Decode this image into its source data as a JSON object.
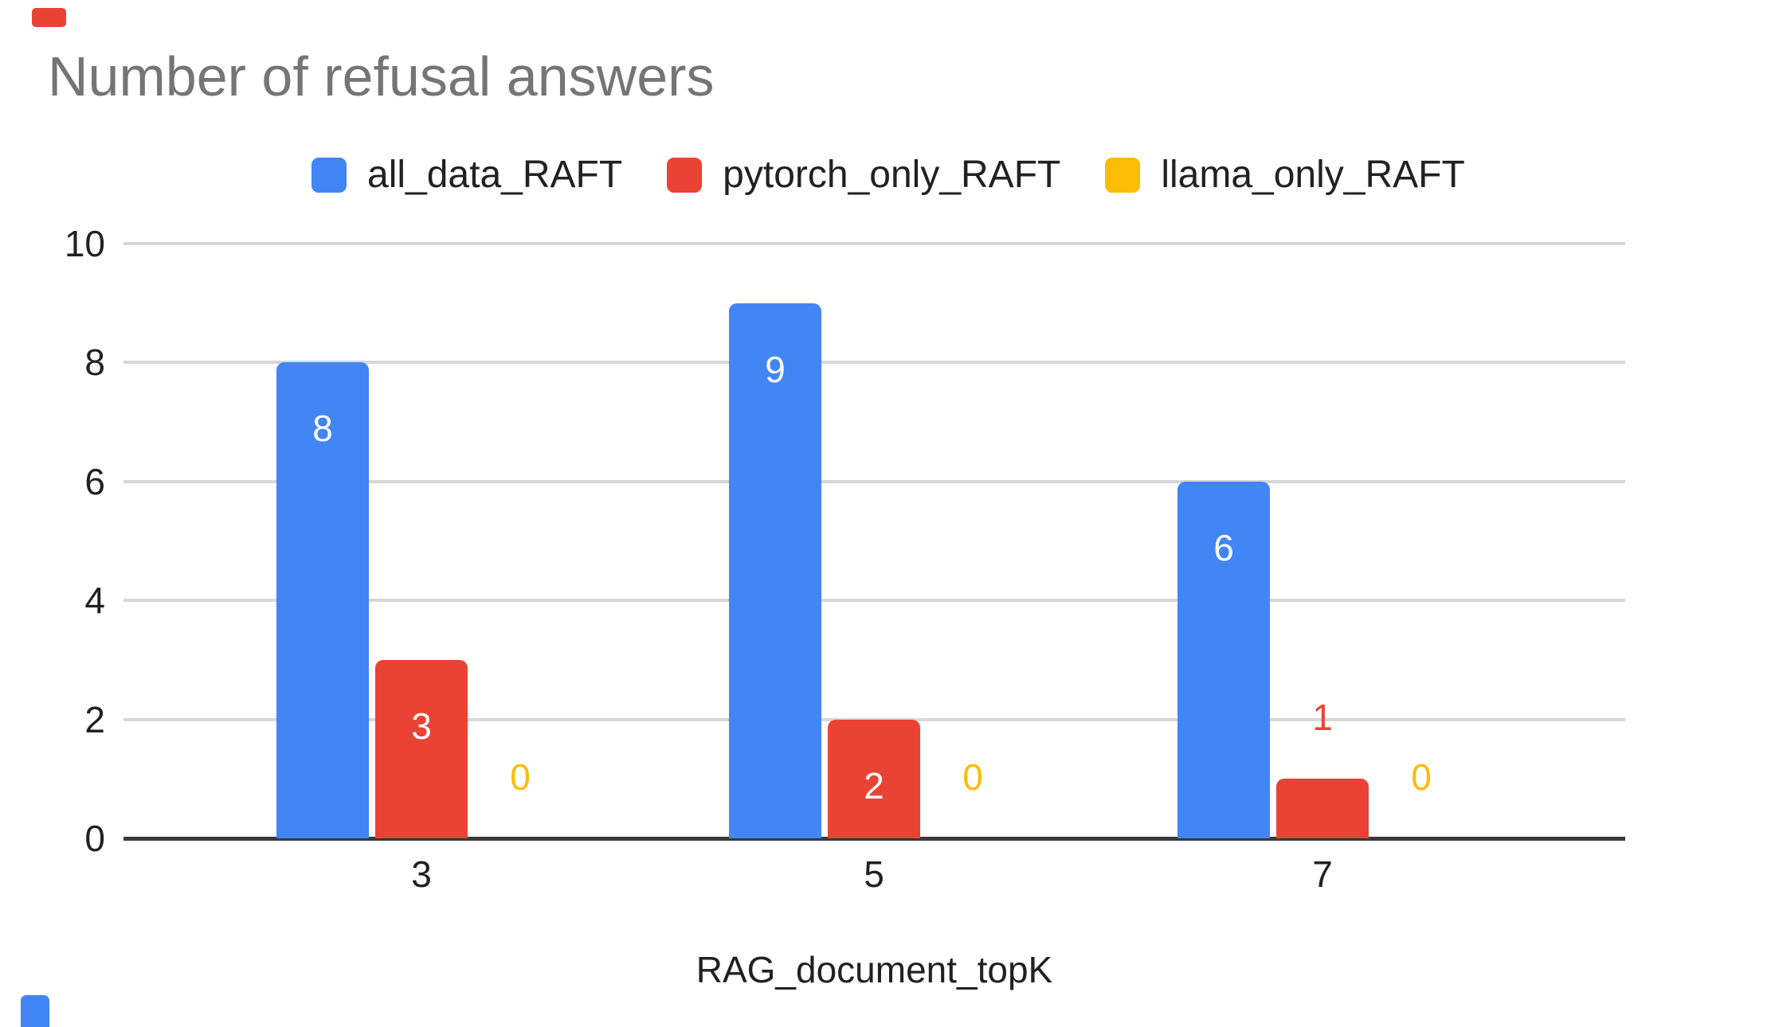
{
  "title": "Number of refusal answers",
  "title_color": "#757575",
  "legend": {
    "items": [
      {
        "label": "all_data_RAFT",
        "color": "#4285F4"
      },
      {
        "label": "pytorch_only_RAFT",
        "color": "#EA4335"
      },
      {
        "label": "llama_only_RAFT",
        "color": "#FBBC04"
      }
    ]
  },
  "chart_data": {
    "type": "bar",
    "title": "Number of refusal answers",
    "categories": [
      "3",
      "5",
      "7"
    ],
    "series": [
      {
        "name": "all_data_RAFT",
        "color": "#4285F4",
        "values": [
          8,
          9,
          6
        ]
      },
      {
        "name": "pytorch_only_RAFT",
        "color": "#EA4335",
        "values": [
          3,
          2,
          1
        ]
      },
      {
        "name": "llama_only_RAFT",
        "color": "#FBBC04",
        "values": [
          0,
          0,
          0
        ]
      }
    ],
    "xlabel": "RAG_document_topK",
    "ylabel": "",
    "ylim": [
      0,
      10
    ],
    "yticks": [
      0,
      2,
      4,
      6,
      8,
      10
    ],
    "grid": true,
    "legend_position": "top",
    "data_labels": true,
    "data_label_inside_color": "#ffffff",
    "grid_color": "#d7d7d7",
    "axis_line_color": "#3a3a3a",
    "tick_label_color": "#212121"
  },
  "decorations": {
    "top_left_mark_color": "#EA4335",
    "bottom_left_mark_color": "#4285F4"
  }
}
